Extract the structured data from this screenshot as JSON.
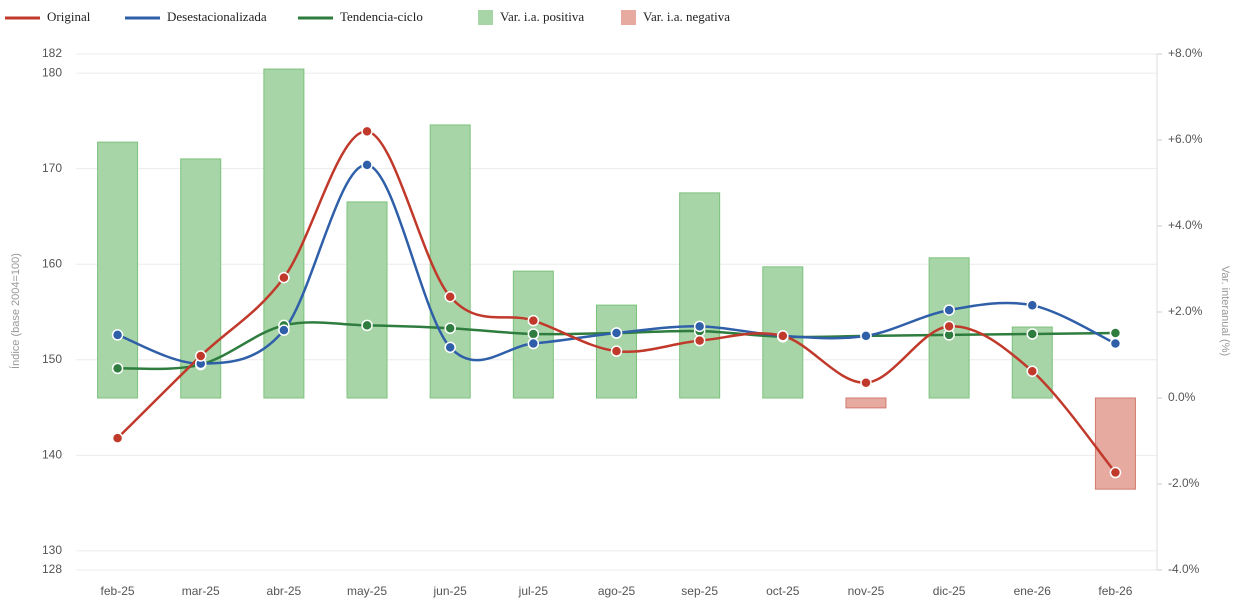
{
  "chart_data": {
    "type": "line",
    "y_label": "Índice (base 2004=100)",
    "y2_label": "Var. interanual (%)",
    "categories": [
      "feb-25",
      "mar-25",
      "abr-25",
      "may-25",
      "jun-25",
      "jul-25",
      "ago-25",
      "sep-25",
      "oct-25",
      "nov-25",
      "dic-25",
      "ene-26",
      "feb-26"
    ],
    "ylim": [
      128,
      182
    ],
    "yticks": [
      128,
      130,
      140,
      150,
      160,
      170,
      180,
      182
    ],
    "y2lim": [
      -4,
      8
    ],
    "y2ticks": [
      {
        "value": 8,
        "label": "+8.0%"
      },
      {
        "value": 6,
        "label": "+6.0%"
      },
      {
        "value": 4,
        "label": "+4.0%"
      },
      {
        "value": 2,
        "label": "+2.0%"
      },
      {
        "value": 0,
        "label": "0.0%"
      },
      {
        "value": -2,
        "label": "-2.0%"
      },
      {
        "value": -4,
        "label": "-4.0%"
      }
    ],
    "grid": true,
    "series": [
      {
        "name": "Original",
        "color": "#c0392b",
        "values": [
          141.8,
          150.4,
          158.6,
          173.9,
          156.6,
          154.1,
          150.9,
          152.0,
          152.5,
          147.6,
          153.5,
          148.8,
          138.2
        ]
      },
      {
        "name": "Desestacionalizada",
        "color": "#2e5fa8",
        "values": [
          152.6,
          149.6,
          153.1,
          170.4,
          151.3,
          151.7,
          152.8,
          153.5,
          152.5,
          152.5,
          155.2,
          155.7,
          151.7
        ]
      },
      {
        "name": "Tendencia-ciclo",
        "color": "#2e7d3e",
        "values": [
          149.1,
          149.5,
          153.6,
          153.6,
          153.3,
          152.7,
          152.8,
          153.0,
          152.4,
          152.5,
          152.6,
          152.7,
          152.8
        ]
      }
    ],
    "bar_series": {
      "axis": "y2",
      "values": [
        5.95,
        5.56,
        7.65,
        4.56,
        6.35,
        2.95,
        2.16,
        4.77,
        3.05,
        -0.23,
        3.26,
        1.65,
        -2.12
      ],
      "positive": {
        "name": "Var. i.a. positiva",
        "color": "#a8d5a8",
        "stroke": "#7cc27c"
      },
      "negative": {
        "name": "Var. i.a. negativa",
        "color": "#e6aaa0",
        "stroke": "#d27a70"
      }
    }
  }
}
